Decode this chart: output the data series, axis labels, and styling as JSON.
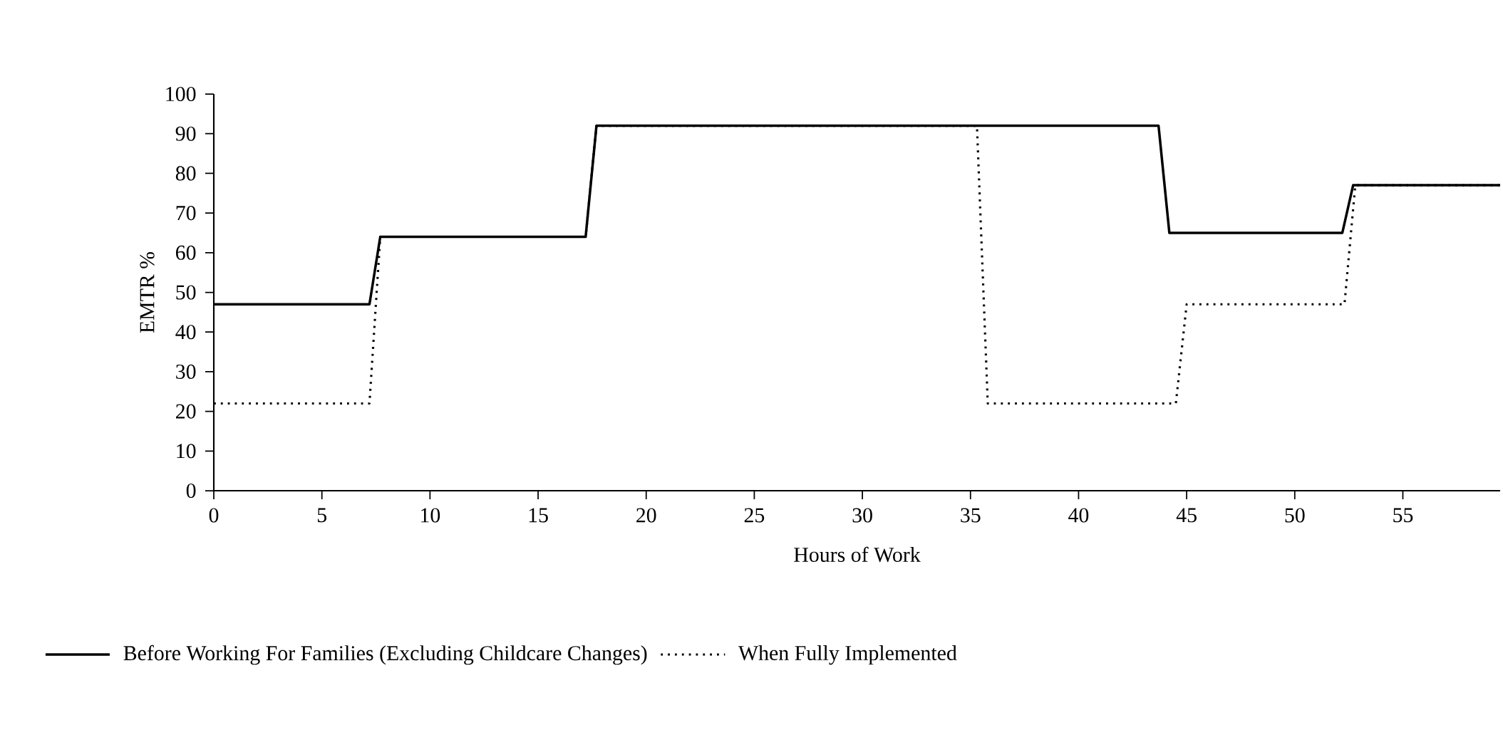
{
  "chart_data": {
    "type": "line",
    "xlabel": "Hours of Work",
    "ylabel": "EMTR %",
    "xlim": [
      0,
      59.5
    ],
    "ylim": [
      0,
      100
    ],
    "xticks": [
      0,
      5,
      10,
      15,
      20,
      25,
      30,
      35,
      40,
      45,
      50,
      55
    ],
    "yticks": [
      0,
      10,
      20,
      30,
      40,
      50,
      60,
      70,
      80,
      90,
      100
    ],
    "legend": "bottom",
    "grid": false,
    "series": [
      {
        "name": "Before Working For Families (Excluding Childcare Changes)",
        "color": "#000000",
        "line_style": "solid",
        "x": [
          0,
          7.2,
          7.7,
          17.2,
          17.7,
          43.7,
          44.2,
          52.2,
          52.7,
          59.5
        ],
        "values": [
          47,
          47,
          64,
          64,
          92,
          92,
          65,
          65,
          77,
          77
        ]
      },
      {
        "name": "When Fully Implemented",
        "color": "#000000",
        "line_style": "dotted",
        "x": [
          0,
          7.2,
          7.7,
          17.2,
          17.7,
          35.3,
          35.8,
          44.5,
          45,
          52.3,
          52.8,
          59.5
        ],
        "values": [
          22,
          22,
          64,
          64,
          92,
          92,
          22,
          22,
          47,
          47,
          77,
          77
        ]
      }
    ]
  }
}
